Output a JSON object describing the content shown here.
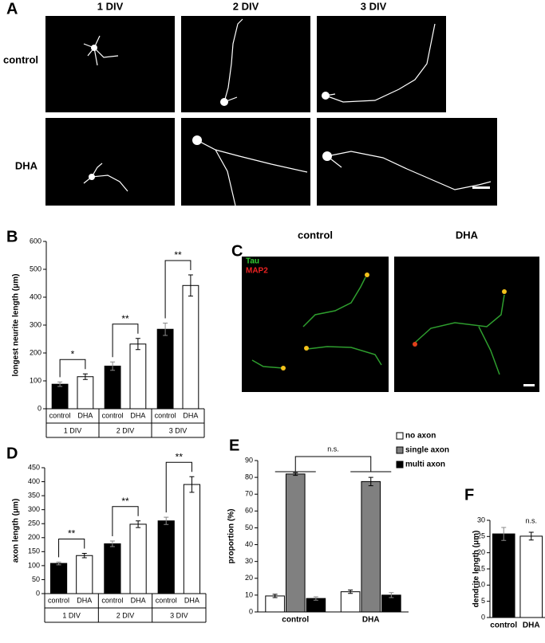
{
  "panels": {
    "a": {
      "label": "A",
      "columns": [
        "1 DIV",
        "2 DIV",
        "3 DIV"
      ],
      "rows": [
        "control",
        "DHA"
      ]
    },
    "c": {
      "label": "C",
      "titles": [
        "control",
        "DHA"
      ],
      "stains": [
        "Tau",
        "MAP2"
      ]
    }
  },
  "chart_data": [
    {
      "type": "bar",
      "panel": "B",
      "y_label": "longest neurite length (μm)",
      "categories": [
        "1 DIV",
        "2 DIV",
        "3 DIV"
      ],
      "series": [
        {
          "name": "control",
          "color": "#000000",
          "values": [
            88,
            153,
            285
          ],
          "errors": [
            8,
            15,
            22
          ]
        },
        {
          "name": "DHA",
          "color": "#ffffff",
          "values": [
            115,
            232,
            442
          ],
          "errors": [
            10,
            20,
            38
          ]
        }
      ],
      "bar_labels": true,
      "significance": [
        "*",
        "**",
        "**"
      ],
      "ylim": [
        0,
        600
      ],
      "yticks": [
        0,
        100,
        200,
        300,
        400,
        500,
        600
      ]
    },
    {
      "type": "bar",
      "panel": "D",
      "y_label": "axon length (μm)",
      "categories": [
        "1 DIV",
        "2 DIV",
        "3 DIV"
      ],
      "series": [
        {
          "name": "control",
          "color": "#000000",
          "values": [
            108,
            178,
            260
          ],
          "errors": [
            5,
            10,
            13
          ]
        },
        {
          "name": "DHA",
          "color": "#ffffff",
          "values": [
            136,
            248,
            390
          ],
          "errors": [
            8,
            12,
            28
          ]
        }
      ],
      "bar_labels": true,
      "significance": [
        "**",
        "**",
        "**"
      ],
      "ylim": [
        0,
        450
      ],
      "yticks": [
        0,
        50,
        100,
        150,
        200,
        250,
        300,
        350,
        400,
        450
      ]
    },
    {
      "type": "bar",
      "panel": "E",
      "y_label": "proportion (%)",
      "categories": [
        "control",
        "DHA"
      ],
      "series": [
        {
          "name": "no axon",
          "color": "#ffffff",
          "values": [
            9.5,
            12
          ],
          "errors": [
            1,
            1
          ]
        },
        {
          "name": "single axon",
          "color": "#808080",
          "values": [
            82,
            77.5
          ],
          "errors": [
            0.8,
            2.5
          ]
        },
        {
          "name": "multi axon",
          "color": "#000000",
          "values": [
            8,
            10
          ],
          "errors": [
            1,
            1.5
          ]
        }
      ],
      "legend": "top-right",
      "annotation": "n.s.",
      "ylim": [
        0,
        90
      ],
      "yticks": [
        0,
        10,
        20,
        30,
        40,
        50,
        60,
        70,
        80,
        90
      ]
    },
    {
      "type": "bar",
      "panel": "F",
      "y_label": "dendrite length (μm)",
      "categories": [
        "control",
        "DHA"
      ],
      "values": [
        25.8,
        25.1
      ],
      "errors": [
        2,
        1.2
      ],
      "colors": [
        "#000000",
        "#ffffff"
      ],
      "annotation": "n.s.",
      "ylim": [
        0,
        30
      ],
      "yticks": [
        0,
        5,
        10,
        15,
        20,
        25,
        30
      ]
    }
  ]
}
